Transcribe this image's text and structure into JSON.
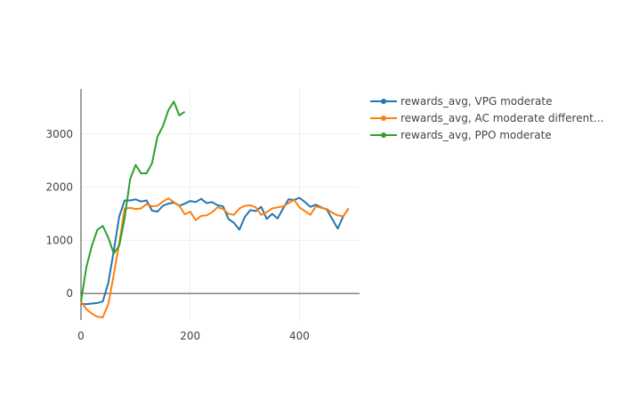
{
  "chart_data": {
    "type": "line",
    "title": "",
    "xlabel": "",
    "ylabel": "",
    "xlim": [
      0,
      510
    ],
    "ylim": [
      -500,
      3850
    ],
    "x_ticks": [
      0,
      200,
      400
    ],
    "y_ticks": [
      0,
      1000,
      2000,
      3000
    ],
    "grid": true,
    "legend_position": "right",
    "series": [
      {
        "name": "rewards_avg, VPG moderate",
        "color": "#1f77b4",
        "x": [
          0,
          10,
          20,
          30,
          40,
          50,
          60,
          70,
          80,
          90,
          100,
          110,
          120,
          130,
          140,
          150,
          160,
          170,
          180,
          190,
          200,
          210,
          220,
          230,
          240,
          250,
          260,
          270,
          280,
          290,
          300,
          310,
          320,
          330,
          340,
          350,
          360,
          370,
          380,
          390,
          400,
          410,
          420,
          430,
          440,
          450,
          460,
          470,
          480,
          490
        ],
        "y": [
          -200,
          -200,
          -190,
          -180,
          -150,
          200,
          800,
          1450,
          1750,
          1750,
          1770,
          1730,
          1750,
          1560,
          1540,
          1650,
          1690,
          1710,
          1650,
          1690,
          1740,
          1720,
          1780,
          1700,
          1720,
          1660,
          1640,
          1400,
          1330,
          1200,
          1440,
          1570,
          1550,
          1630,
          1400,
          1500,
          1410,
          1600,
          1770,
          1760,
          1800,
          1720,
          1630,
          1670,
          1620,
          1580,
          1400,
          1220,
          1450,
          1600
        ]
      },
      {
        "name": "rewards_avg, AC moderate different...",
        "color": "#ff7f0e",
        "x": [
          0,
          10,
          20,
          30,
          40,
          50,
          60,
          70,
          80,
          90,
          100,
          110,
          120,
          130,
          140,
          150,
          160,
          170,
          180,
          190,
          200,
          210,
          220,
          230,
          240,
          250,
          260,
          270,
          280,
          290,
          300,
          310,
          320,
          330,
          340,
          350,
          360,
          370,
          380,
          390,
          400,
          410,
          420,
          430,
          440,
          450,
          460,
          470,
          480,
          490
        ],
        "y": [
          -150,
          -300,
          -380,
          -440,
          -450,
          -200,
          350,
          950,
          1600,
          1610,
          1590,
          1600,
          1680,
          1640,
          1650,
          1730,
          1790,
          1720,
          1650,
          1490,
          1540,
          1380,
          1460,
          1470,
          1530,
          1620,
          1590,
          1500,
          1480,
          1600,
          1650,
          1660,
          1620,
          1480,
          1530,
          1600,
          1620,
          1640,
          1700,
          1760,
          1620,
          1550,
          1480,
          1640,
          1610,
          1590,
          1520,
          1470,
          1450,
          1600
        ]
      },
      {
        "name": "rewards_avg, PPO moderate",
        "color": "#2ca02c",
        "x": [
          0,
          10,
          20,
          30,
          40,
          50,
          60,
          70,
          80,
          90,
          100,
          110,
          120,
          130,
          140,
          150,
          160,
          170,
          180,
          190
        ],
        "y": [
          -150,
          500,
          900,
          1200,
          1270,
          1050,
          750,
          900,
          1420,
          2150,
          2420,
          2260,
          2260,
          2450,
          2950,
          3150,
          3450,
          3610,
          3350,
          3420
        ]
      }
    ]
  }
}
